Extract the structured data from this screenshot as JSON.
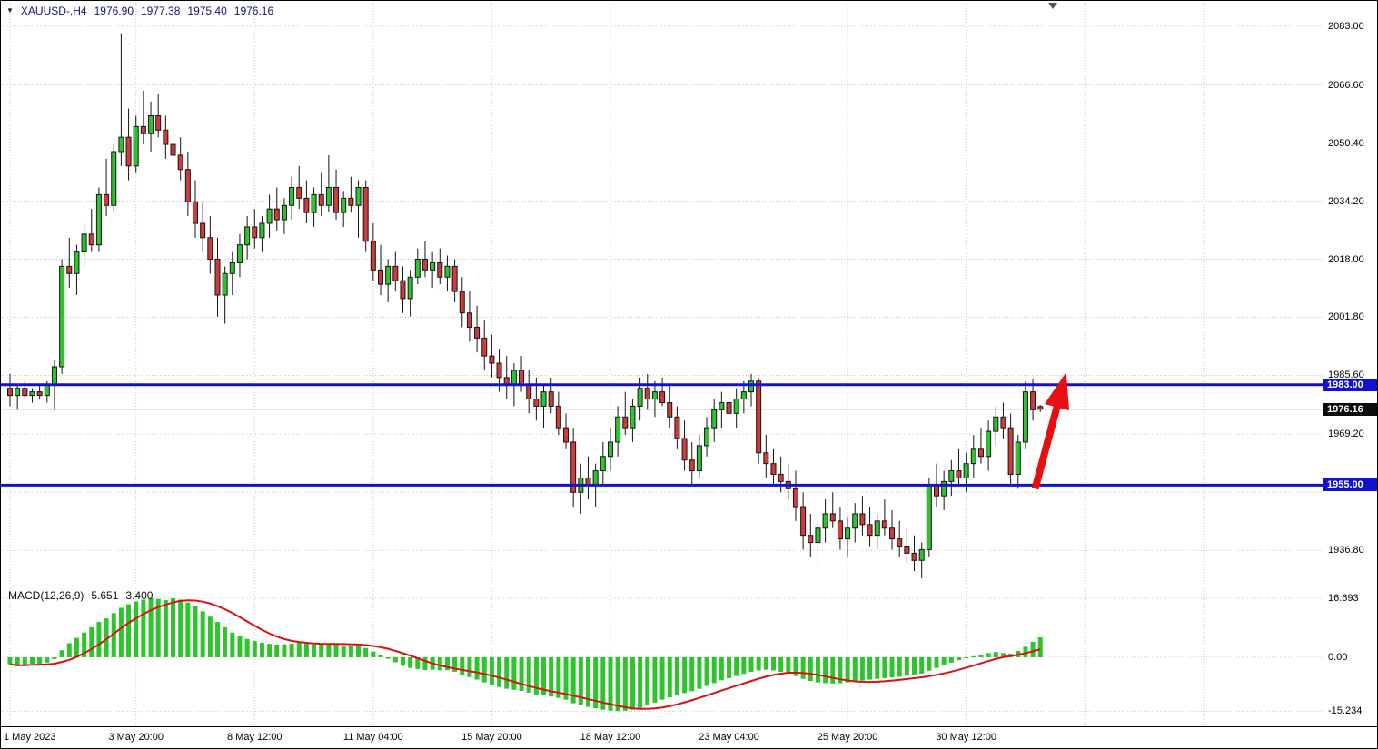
{
  "window": {
    "legend": {
      "dropdown_marker": "▼",
      "symbol": "XAUUSD-,H4",
      "open": "1976.90",
      "high": "1977.38",
      "low": "1975.40",
      "close": "1976.16"
    }
  },
  "colors": {
    "background": "#ffffff",
    "grid": "#c8c8c8",
    "bull": "#2dc42d",
    "bear": "#cf3a3a",
    "outline": "#141414",
    "level_line": "#1212cc",
    "current_line": "#9a9a9a",
    "macd_bar": "#2dc42d",
    "macd_signal": "#d91111",
    "arrow": "#e80f0f",
    "legend_text": "#121277",
    "axis_text": "#000000"
  },
  "macd_panel": {
    "title": "MACD(12,26,9)",
    "macd_value": "5.651",
    "signal_value": "3.400",
    "axis_top": "16.693",
    "axis_zero": "0.00",
    "axis_bottom": "-15.234"
  },
  "chart_data": [
    {
      "type": "candlestick",
      "title": "XAUUSD-,H4",
      "ylim": [
        1928,
        2088
      ],
      "yticks": [
        {
          "price": 2083.0,
          "label": "2083.00"
        },
        {
          "price": 2066.6,
          "label": "2066.60"
        },
        {
          "price": 2050.4,
          "label": "2050.40"
        },
        {
          "price": 2034.2,
          "label": "2034.20"
        },
        {
          "price": 2018.0,
          "label": "2018.00"
        },
        {
          "price": 2001.8,
          "label": "2001.80"
        },
        {
          "price": 1985.6,
          "label": "1985.60"
        },
        {
          "price": 1969.2,
          "label": "1969.20"
        },
        {
          "price": 1953.0,
          "label": ""
        },
        {
          "price": 1936.8,
          "label": "1936.80"
        }
      ],
      "x_labels": [
        {
          "index": 0,
          "text": "1 May 2023"
        },
        {
          "index": 17,
          "text": "3 May 20:00"
        },
        {
          "index": 33,
          "text": "8 May 12:00"
        },
        {
          "index": 49,
          "text": "11 May 04:00"
        },
        {
          "index": 65,
          "text": "15 May 20:00"
        },
        {
          "index": 81,
          "text": "18 May 12:00"
        },
        {
          "index": 97,
          "text": "23 May 04:00"
        },
        {
          "index": 113,
          "text": "25 May 20:00"
        },
        {
          "index": 129,
          "text": "30 May 12:00"
        }
      ],
      "future_grid_indices": [
        145,
        161
      ],
      "hlines": [
        {
          "price": 1983.0,
          "label": "1983.00"
        },
        {
          "price": 1955.0,
          "label": "1955.00"
        }
      ],
      "current_price": {
        "price": 1976.16,
        "label": "1976.16"
      },
      "annotations": [
        {
          "type": "up-arrow",
          "from_index": 138.3,
          "from_price": 1954,
          "to_index": 142.5,
          "to_price": 1986.5
        }
      ],
      "ohlc": [
        [
          1982,
          1986,
          1977,
          1980
        ],
        [
          1980,
          1983,
          1976,
          1982
        ],
        [
          1982,
          1984,
          1979,
          1980
        ],
        [
          1980,
          1982,
          1978,
          1981
        ],
        [
          1981,
          1983,
          1979,
          1980
        ],
        [
          1980,
          1984,
          1978,
          1983
        ],
        [
          1983,
          1990,
          1976,
          1988
        ],
        [
          1988,
          2018,
          1986,
          2016
        ],
        [
          2016,
          2024,
          2010,
          2014
        ],
        [
          2014,
          2022,
          2008,
          2020
        ],
        [
          2020,
          2028,
          2016,
          2025
        ],
        [
          2025,
          2032,
          2020,
          2022
        ],
        [
          2022,
          2038,
          2020,
          2036
        ],
        [
          2036,
          2046,
          2030,
          2033
        ],
        [
          2033,
          2050,
          2031,
          2048
        ],
        [
          2048,
          2081,
          2044,
          2052
        ],
        [
          2052,
          2060,
          2040,
          2044
        ],
        [
          2044,
          2058,
          2042,
          2055
        ],
        [
          2055,
          2065,
          2050,
          2053
        ],
        [
          2053,
          2062,
          2048,
          2058
        ],
        [
          2058,
          2064,
          2052,
          2054
        ],
        [
          2054,
          2058,
          2046,
          2050
        ],
        [
          2050,
          2056,
          2044,
          2047
        ],
        [
          2047,
          2052,
          2040,
          2043
        ],
        [
          2043,
          2048,
          2030,
          2034
        ],
        [
          2034,
          2040,
          2024,
          2028
        ],
        [
          2028,
          2034,
          2020,
          2024
        ],
        [
          2024,
          2030,
          2014,
          2018
        ],
        [
          2018,
          2024,
          2002,
          2008
        ],
        [
          2008,
          2016,
          2000,
          2014
        ],
        [
          2014,
          2020,
          2008,
          2017
        ],
        [
          2017,
          2025,
          2013,
          2022
        ],
        [
          2022,
          2030,
          2018,
          2027
        ],
        [
          2027,
          2032,
          2021,
          2024
        ],
        [
          2024,
          2030,
          2020,
          2028
        ],
        [
          2028,
          2036,
          2024,
          2032
        ],
        [
          2032,
          2038,
          2026,
          2029
        ],
        [
          2029,
          2035,
          2025,
          2033
        ],
        [
          2033,
          2041,
          2029,
          2038
        ],
        [
          2038,
          2044,
          2032,
          2035
        ],
        [
          2035,
          2040,
          2028,
          2031
        ],
        [
          2031,
          2038,
          2027,
          2036
        ],
        [
          2036,
          2042,
          2030,
          2033
        ],
        [
          2033,
          2047,
          2031,
          2038
        ],
        [
          2038,
          2043,
          2029,
          2031
        ],
        [
          2031,
          2037,
          2027,
          2035
        ],
        [
          2035,
          2041,
          2031,
          2033
        ],
        [
          2033,
          2040,
          2024,
          2038
        ],
        [
          2038,
          2040,
          2020,
          2023
        ],
        [
          2023,
          2028,
          2012,
          2015
        ],
        [
          2015,
          2022,
          2008,
          2011
        ],
        [
          2011,
          2018,
          2006,
          2016
        ],
        [
          2016,
          2020,
          2009,
          2012
        ],
        [
          2012,
          2016,
          2003,
          2007
        ],
        [
          2007,
          2015,
          2002,
          2013
        ],
        [
          2013,
          2021,
          2011,
          2018
        ],
        [
          2018,
          2023,
          2013,
          2015
        ],
        [
          2015,
          2020,
          2010,
          2017
        ],
        [
          2017,
          2021,
          2011,
          2013
        ],
        [
          2013,
          2019,
          2009,
          2016
        ],
        [
          2016,
          2018,
          2006,
          2009
        ],
        [
          2009,
          2013,
          1999,
          2003
        ],
        [
          2003,
          2009,
          1995,
          1999
        ],
        [
          1999,
          2005,
          1992,
          1996
        ],
        [
          1996,
          2001,
          1987,
          1991
        ],
        [
          1991,
          1997,
          1985,
          1989
        ],
        [
          1989,
          1993,
          1981,
          1985
        ],
        [
          1985,
          1991,
          1979,
          1983
        ],
        [
          1983,
          1989,
          1977,
          1987
        ],
        [
          1987,
          1991,
          1981,
          1983
        ],
        [
          1983,
          1987,
          1975,
          1979
        ],
        [
          1979,
          1985,
          1973,
          1977
        ],
        [
          1977,
          1983,
          1971,
          1981
        ],
        [
          1981,
          1985,
          1975,
          1977
        ],
        [
          1977,
          1981,
          1969,
          1971
        ],
        [
          1971,
          1975,
          1965,
          1967
        ],
        [
          1967,
          1971,
          1949,
          1953
        ],
        [
          1953,
          1961,
          1947,
          1957
        ],
        [
          1957,
          1963,
          1951,
          1955
        ],
        [
          1955,
          1961,
          1949,
          1959
        ],
        [
          1959,
          1967,
          1955,
          1963
        ],
        [
          1963,
          1971,
          1959,
          1967
        ],
        [
          1967,
          1977,
          1963,
          1974
        ],
        [
          1974,
          1981,
          1969,
          1971
        ],
        [
          1971,
          1979,
          1967,
          1977
        ],
        [
          1977,
          1985,
          1973,
          1982
        ],
        [
          1982,
          1986,
          1976,
          1979
        ],
        [
          1979,
          1984,
          1974,
          1981
        ],
        [
          1981,
          1985,
          1977,
          1978
        ],
        [
          1978,
          1983,
          1971,
          1974
        ],
        [
          1974,
          1977,
          1965,
          1968
        ],
        [
          1968,
          1973,
          1959,
          1962
        ],
        [
          1962,
          1967,
          1955,
          1959
        ],
        [
          1959,
          1969,
          1957,
          1966
        ],
        [
          1966,
          1974,
          1963,
          1971
        ],
        [
          1971,
          1979,
          1967,
          1976
        ],
        [
          1976,
          1981,
          1971,
          1978
        ],
        [
          1978,
          1983,
          1973,
          1975
        ],
        [
          1975,
          1982,
          1971,
          1979
        ],
        [
          1979,
          1984,
          1975,
          1981
        ],
        [
          1981,
          1986,
          1977,
          1984
        ],
        [
          1984,
          1985,
          1961,
          1964
        ],
        [
          1964,
          1969,
          1957,
          1961
        ],
        [
          1961,
          1965,
          1955,
          1958
        ],
        [
          1958,
          1963,
          1953,
          1956
        ],
        [
          1956,
          1961,
          1951,
          1954
        ],
        [
          1954,
          1959,
          1945,
          1949
        ],
        [
          1949,
          1953,
          1937,
          1941
        ],
        [
          1941,
          1947,
          1935,
          1939
        ],
        [
          1939,
          1945,
          1933,
          1943
        ],
        [
          1943,
          1951,
          1939,
          1947
        ],
        [
          1947,
          1953,
          1943,
          1945
        ],
        [
          1945,
          1949,
          1937,
          1940
        ],
        [
          1940,
          1946,
          1935,
          1943
        ],
        [
          1943,
          1950,
          1939,
          1947
        ],
        [
          1947,
          1952,
          1941,
          1944
        ],
        [
          1944,
          1949,
          1938,
          1941
        ],
        [
          1941,
          1947,
          1937,
          1945
        ],
        [
          1945,
          1951,
          1941,
          1943
        ],
        [
          1943,
          1948,
          1937,
          1940
        ],
        [
          1940,
          1945,
          1935,
          1938
        ],
        [
          1938,
          1943,
          1933,
          1936
        ],
        [
          1936,
          1941,
          1931,
          1934
        ],
        [
          1934,
          1939,
          1929,
          1937
        ],
        [
          1937,
          1957,
          1935,
          1955
        ],
        [
          1955,
          1961,
          1949,
          1952
        ],
        [
          1952,
          1959,
          1948,
          1956
        ],
        [
          1956,
          1962,
          1952,
          1959
        ],
        [
          1959,
          1965,
          1955,
          1957
        ],
        [
          1957,
          1964,
          1953,
          1961
        ],
        [
          1961,
          1969,
          1957,
          1965
        ],
        [
          1965,
          1971,
          1961,
          1963
        ],
        [
          1963,
          1973,
          1959,
          1970
        ],
        [
          1970,
          1977,
          1966,
          1974
        ],
        [
          1974,
          1978,
          1968,
          1971
        ],
        [
          1971,
          1975,
          1955,
          1958
        ],
        [
          1958,
          1969,
          1954,
          1967
        ],
        [
          1967,
          1984,
          1965,
          1981
        ],
        [
          1981,
          1984.5,
          1973,
          1976
        ],
        [
          1976.9,
          1977.38,
          1975.4,
          1976.16
        ]
      ]
    },
    {
      "type": "bar",
      "name": "MACD(12,26,9)",
      "macd_current": 5.651,
      "signal_current": 3.4,
      "signal": "sma9",
      "ylim": [
        -19.3,
        18.8
      ],
      "yticks": [
        16.693,
        0,
        -15.234
      ],
      "values": [
        -2,
        -2.5,
        -2.2,
        -1.8,
        -2,
        -1.5,
        -0.5,
        2,
        4,
        5.5,
        7,
        8.5,
        10,
        11,
        12.5,
        14,
        15,
        15.8,
        16.3,
        16.7,
        16.5,
        16.2,
        16.7,
        16.3,
        15.5,
        14.5,
        13,
        11.5,
        10,
        8.5,
        7,
        6,
        5.2,
        4.6,
        4.1,
        3.8,
        3.6,
        3.7,
        3.9,
        4.1,
        3.9,
        3.6,
        3.7,
        3.9,
        3.6,
        3.3,
        3.1,
        3.4,
        2.6,
        1.6,
        0.6,
        -0.4,
        -1.4,
        -2.4,
        -3,
        -3.3,
        -3.6,
        -3.5,
        -3.7,
        -3.6,
        -4.1,
        -4.9,
        -5.6,
        -6.3,
        -7.1,
        -7.9,
        -8.4,
        -8.9,
        -9.2,
        -9.5,
        -10,
        -10.5,
        -10.8,
        -11.1,
        -11.5,
        -12,
        -13,
        -13.5,
        -14,
        -14.4,
        -14.8,
        -15.1,
        -15.2,
        -15.1,
        -14.8,
        -14.3,
        -13.6,
        -12.8,
        -12,
        -11.3,
        -10.7,
        -10.1,
        -9.6,
        -8.9,
        -8.1,
        -7.3,
        -6.5,
        -5.9,
        -5.3,
        -4.7,
        -4.1,
        -3.7,
        -3.5,
        -3.7,
        -4.1,
        -4.6,
        -5.3,
        -6.1,
        -6.7,
        -7.1,
        -7.3,
        -7.4,
        -7.3,
        -7.1,
        -6.9,
        -6.6,
        -6.3,
        -6.1,
        -5.9,
        -5.7,
        -5.5,
        -5.2,
        -5,
        -4.6,
        -3.8,
        -3,
        -2.2,
        -1.5,
        -0.8,
        -0.3,
        0.3,
        0.8,
        1.2,
        1.5,
        1.2,
        1,
        1.8,
        3,
        4.4,
        5.651
      ]
    }
  ]
}
